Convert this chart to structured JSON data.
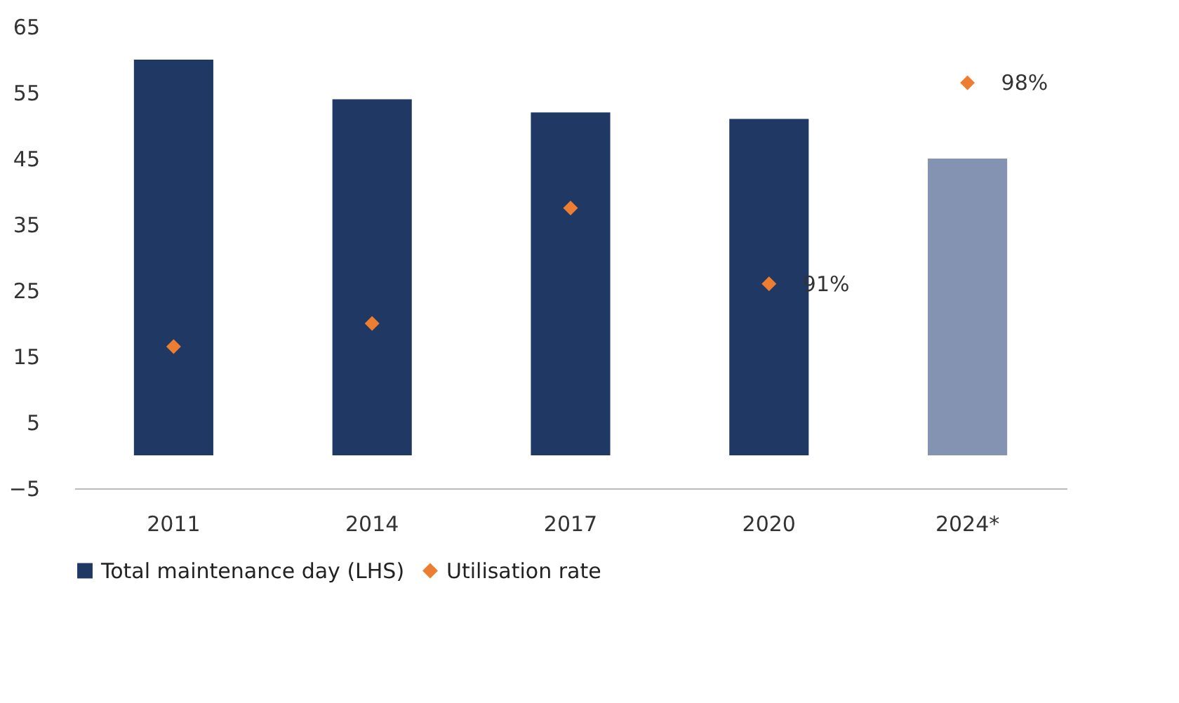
{
  "chart_data": {
    "type": "bar",
    "categories": [
      "2011",
      "2014",
      "2017",
      "2020",
      "2024*"
    ],
    "series": [
      {
        "name": "Total maintenance day (LHS)",
        "color": "#1f3864",
        "colors": [
          "#1f3864",
          "#1f3864",
          "#1f3864",
          "#1f3864",
          "#8593b3"
        ],
        "values": [
          60,
          54,
          52,
          51,
          45
        ]
      },
      {
        "name": "Utilisation rate",
        "type": "scatter",
        "color": "#ed7d31",
        "marker": "diamond",
        "values": [
          16.5,
          20,
          37.5,
          26,
          56.5
        ]
      }
    ],
    "annotations": [
      {
        "text": "91%",
        "x": "2020",
        "y": 26
      },
      {
        "text": "98%",
        "x": "2024*",
        "y": 56.5
      }
    ],
    "ylim": [
      -5,
      65
    ],
    "yticks": [
      -5,
      5,
      15,
      25,
      35,
      45,
      55,
      65
    ],
    "grid": false,
    "legend": "bottom"
  }
}
